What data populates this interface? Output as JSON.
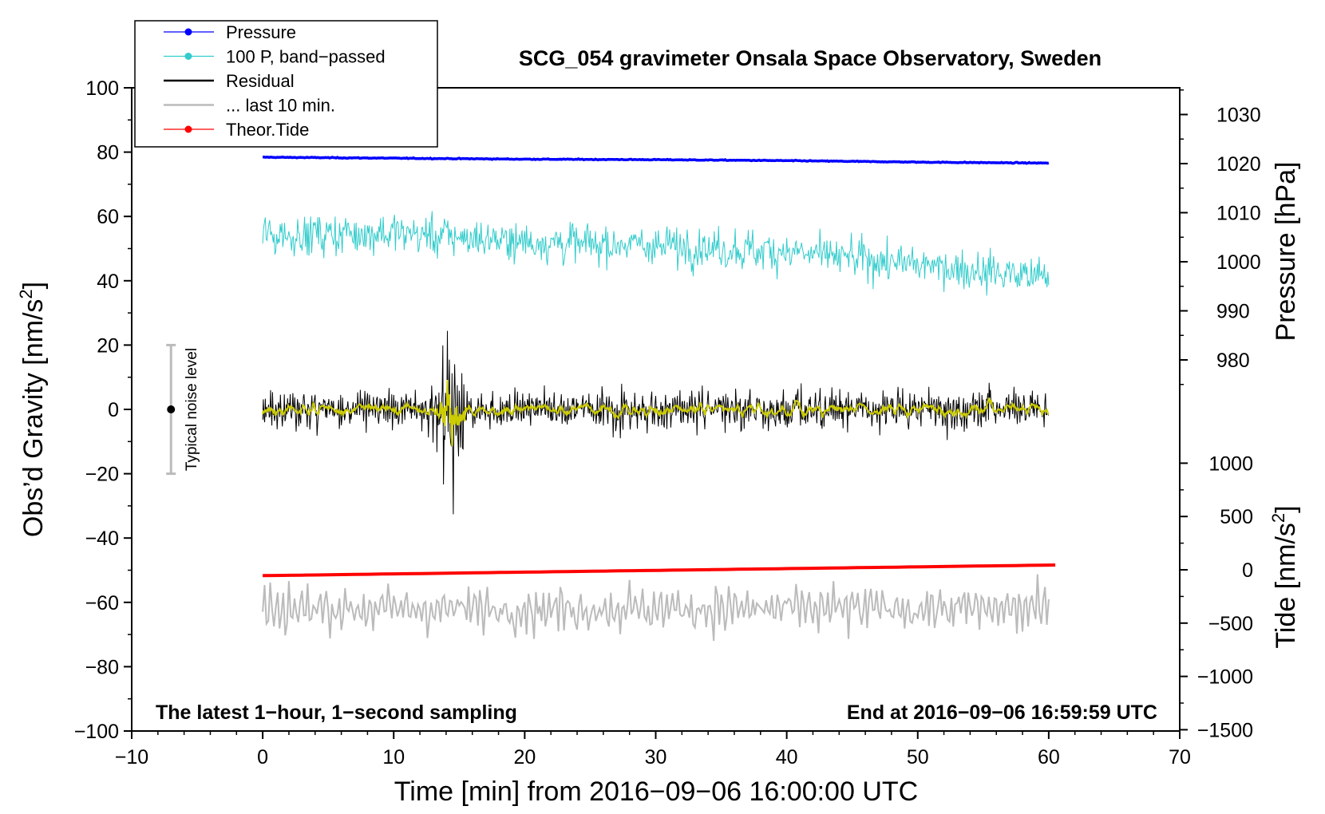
{
  "chart_data": {
    "type": "line",
    "title": "SCG_054 gravimeter Onsala Space Observatory, Sweden",
    "xlabel": "Time [min] from 2016−09−06 16:00:00 UTC",
    "xlim": [
      -10,
      70
    ],
    "xticks": [
      -10,
      0,
      10,
      20,
      30,
      40,
      50,
      60,
      70
    ],
    "xtick_labels": [
      "−10",
      "0",
      "10",
      "20",
      "30",
      "40",
      "50",
      "60",
      "70"
    ],
    "left_axis": {
      "label_main": "Obs’d Gravity [nm/s",
      "label_sup": "2",
      "label_end": "]",
      "ylim": [
        -100,
        100
      ],
      "ticks": [
        -100,
        -80,
        -60,
        -40,
        -20,
        0,
        20,
        40,
        60,
        80,
        100
      ],
      "tick_labels": [
        "−100",
        "−80",
        "−60",
        "−40",
        "−20",
        "0",
        "20",
        "40",
        "60",
        "80",
        "100"
      ]
    },
    "pressure_axis": {
      "label": "Pressure [hPa]",
      "ticks": [
        980,
        990,
        1000,
        1010,
        1020,
        1030
      ],
      "tick_labels": [
        "980",
        "990",
        "1000",
        "1010",
        "1020",
        "1030"
      ]
    },
    "tide_axis": {
      "label_main": "Tide [nm/s",
      "label_sup": "2",
      "label_end": "]",
      "ticks": [
        -1500,
        -1000,
        -500,
        0,
        500,
        1000
      ],
      "tick_labels": [
        "−1500",
        "−1000",
        "−500",
        "0",
        "500",
        "1000"
      ]
    },
    "series": [
      {
        "name": "Pressure",
        "color": "#0000ff",
        "axis": "pressure",
        "x": [
          0,
          10,
          20,
          30,
          40,
          50,
          60
        ],
        "values": [
          1021.3,
          1021.1,
          1020.9,
          1020.8,
          1020.6,
          1020.3,
          1020.1
        ]
      },
      {
        "name": "100 P, band−passed",
        "color": "#33cccc",
        "axis": "gravity",
        "x": [
          0,
          10,
          20,
          30,
          40,
          50,
          60
        ],
        "values": [
          54,
          55,
          52,
          51,
          49,
          45,
          41
        ],
        "noise_amplitude": 5.5
      },
      {
        "name": "Residual",
        "color": "#000000",
        "axis": "gravity",
        "x": [
          0,
          10,
          20,
          30,
          40,
          50,
          60
        ],
        "values": [
          0,
          0,
          0,
          0,
          0,
          0,
          0
        ],
        "noise_amplitude": 5,
        "event": {
          "center_min": 14.3,
          "peak_amplitude": 25
        }
      },
      {
        "name": "... last 10 min.",
        "color": "#bbbbbb",
        "axis": "gravity",
        "x": [
          0,
          10,
          20,
          30,
          40,
          50,
          60
        ],
        "values": [
          -62,
          -62,
          -62,
          -62,
          -62,
          -62,
          -62
        ],
        "noise_amplitude": 7
      },
      {
        "name": "Theor.Tide",
        "color": "#ff0000",
        "axis": "tide",
        "x": [
          0,
          60.5
        ],
        "values": [
          -55,
          45
        ]
      }
    ],
    "smoothed_residual_color": "#cccc00",
    "noise_bar": {
      "label": "Typical noise level",
      "x": -7,
      "center": 0,
      "low": -20,
      "high": 20
    },
    "annotations": {
      "bottom_left": "The latest 1−hour, 1−second sampling",
      "bottom_right": "End at 2016−09−06 16:59:59 UTC"
    },
    "legend_position": "top-left"
  }
}
